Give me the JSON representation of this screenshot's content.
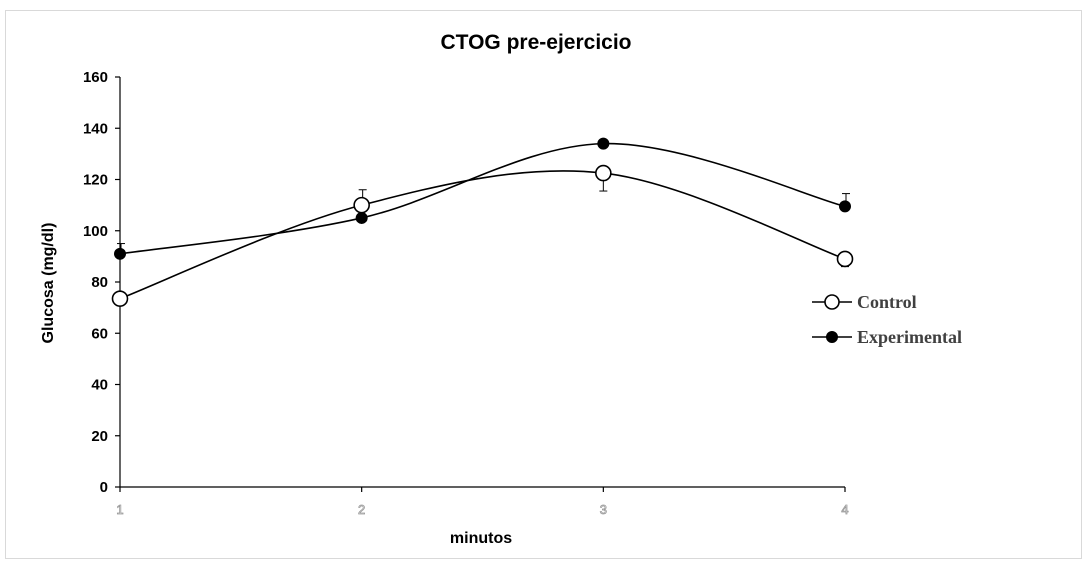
{
  "chart_data": {
    "type": "line",
    "title": "CTOG pre-ejercicio",
    "xlabel": "minutos",
    "ylabel": "Glucosa (mg/dl)",
    "x": [
      1,
      2,
      3,
      4
    ],
    "xticks": [
      "1",
      "2",
      "3",
      "4"
    ],
    "ylim": [
      0,
      160
    ],
    "yticks": [
      "0",
      "20",
      "40",
      "60",
      "80",
      "100",
      "120",
      "140",
      "160"
    ],
    "grid": false,
    "smooth": true,
    "legend_position": "right",
    "series": [
      {
        "name": "Control",
        "marker": "open-circle",
        "color": "#000000",
        "values": [
          73.5,
          110,
          122.5,
          89
        ],
        "error": [
          0,
          0,
          7,
          3
        ]
      },
      {
        "name": "Experimental",
        "marker": "filled-circle",
        "color": "#000000",
        "values": [
          91,
          105,
          134,
          109.5
        ],
        "error": [
          4,
          11,
          1,
          5
        ]
      }
    ]
  }
}
